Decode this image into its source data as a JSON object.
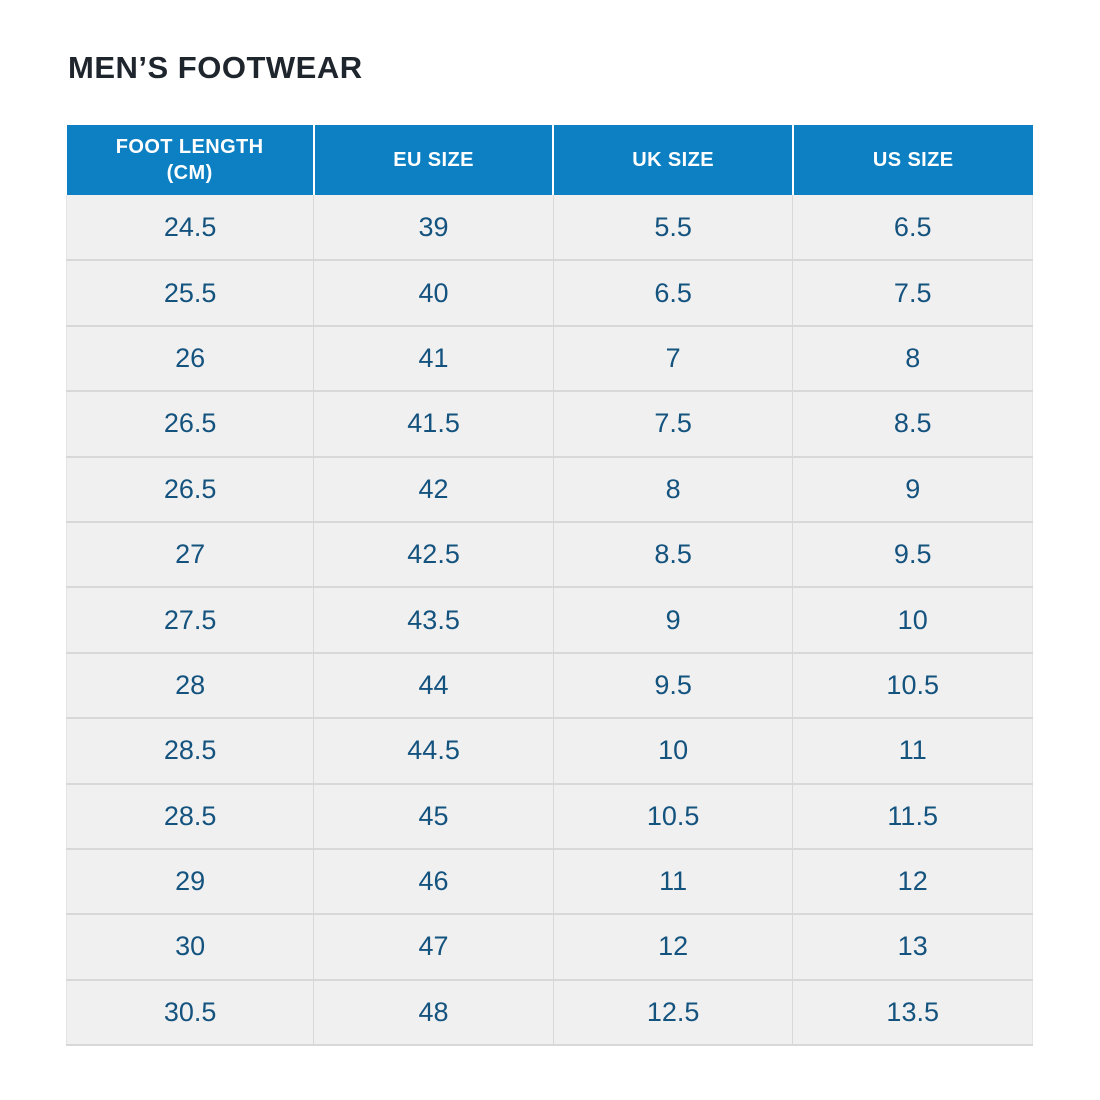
{
  "page": {
    "title": "MEN’S FOOTWEAR"
  },
  "table": {
    "columns": [
      "FOOT LENGTH (CM)",
      "EU SIZE",
      "UK SIZE",
      "US SIZE"
    ],
    "rows": [
      [
        "24.5",
        "39",
        "5.5",
        "6.5"
      ],
      [
        "25.5",
        "40",
        "6.5",
        "7.5"
      ],
      [
        "26",
        "41",
        "7",
        "8"
      ],
      [
        "26.5",
        "41.5",
        "7.5",
        "8.5"
      ],
      [
        "26.5",
        "42",
        "8",
        "9"
      ],
      [
        "27",
        "42.5",
        "8.5",
        "9.5"
      ],
      [
        "27.5",
        "43.5",
        "9",
        "10"
      ],
      [
        "28",
        "44",
        "9.5",
        "10.5"
      ],
      [
        "28.5",
        "44.5",
        "10",
        "11"
      ],
      [
        "28.5",
        "45",
        "10.5",
        "11.5"
      ],
      [
        "29",
        "46",
        "11",
        "12"
      ],
      [
        "30",
        "47",
        "12",
        "13"
      ],
      [
        "30.5",
        "48",
        "12.5",
        "13.5"
      ]
    ]
  },
  "colors": {
    "header_bg": "#0c80c2",
    "header_text": "#ffffff",
    "row_bg": "#f0f0f1",
    "cell_text": "#15537f",
    "title_text": "#1f252d",
    "divider": "#d8d8d8",
    "page_bg": "#ffffff"
  },
  "chart_data": {
    "type": "table",
    "title": "MEN’S FOOTWEAR",
    "columns": [
      "FOOT LENGTH (CM)",
      "EU SIZE",
      "UK SIZE",
      "US SIZE"
    ],
    "rows": [
      [
        24.5,
        39,
        5.5,
        6.5
      ],
      [
        25.5,
        40,
        6.5,
        7.5
      ],
      [
        26,
        41,
        7,
        8
      ],
      [
        26.5,
        41.5,
        7.5,
        8.5
      ],
      [
        26.5,
        42,
        8,
        9
      ],
      [
        27,
        42.5,
        8.5,
        9.5
      ],
      [
        27.5,
        43.5,
        9,
        10
      ],
      [
        28,
        44,
        9.5,
        10.5
      ],
      [
        28.5,
        44.5,
        10,
        11
      ],
      [
        28.5,
        45,
        10.5,
        11.5
      ],
      [
        29,
        46,
        11,
        12
      ],
      [
        30,
        47,
        12,
        13
      ],
      [
        30.5,
        48,
        12.5,
        13.5
      ]
    ],
    "layout": {
      "header_position": "top",
      "grid": true,
      "header_color": "#0c80c2",
      "body_color": "#f0f0f1"
    }
  }
}
